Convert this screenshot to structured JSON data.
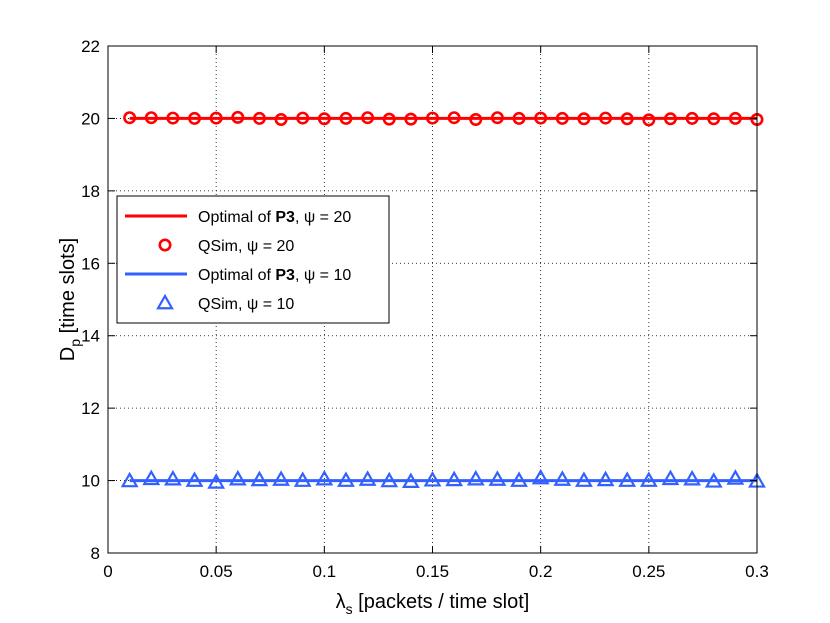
{
  "chart_data": {
    "type": "line",
    "title": "",
    "xlabel": {
      "symbol": "λ",
      "sub": "s",
      "rest": " [packets / time slot]"
    },
    "ylabel": {
      "symbol": "D",
      "sub": "p",
      "rest": " [time slots]"
    },
    "xlim": [
      0,
      0.3
    ],
    "ylim": [
      8,
      22
    ],
    "xticks": [
      0,
      0.05,
      0.1,
      0.15,
      0.2,
      0.25,
      0.3
    ],
    "xtick_labels": [
      "0",
      "0.05",
      "0.1",
      "0.15",
      "0.2",
      "0.25",
      "0.3"
    ],
    "yticks": [
      8,
      10,
      12,
      14,
      16,
      18,
      20,
      22
    ],
    "ytick_labels": [
      "8",
      "10",
      "12",
      "14",
      "16",
      "18",
      "20",
      "22"
    ],
    "grid": true,
    "legend_position": "middle-left",
    "x": [
      0.01,
      0.02,
      0.03,
      0.04,
      0.05,
      0.06,
      0.07,
      0.08,
      0.09,
      0.1,
      0.11,
      0.12,
      0.13,
      0.14,
      0.15,
      0.16,
      0.17,
      0.18,
      0.19,
      0.2,
      0.21,
      0.22,
      0.23,
      0.24,
      0.25,
      0.26,
      0.27,
      0.28,
      0.29,
      0.3
    ],
    "series": [
      {
        "name": "Optimal of P3, ψ = 20",
        "kind": "line",
        "color": "#ff0000",
        "values": [
          20,
          20,
          20,
          20,
          20,
          20,
          20,
          20,
          20,
          20,
          20,
          20,
          20,
          20,
          20,
          20,
          20,
          20,
          20,
          20,
          20,
          20,
          20,
          20,
          20,
          20,
          20,
          20,
          20,
          20
        ]
      },
      {
        "name": "QSim, ψ = 20",
        "kind": "marker-circle",
        "color": "#ff0000",
        "values": [
          20.02,
          20.02,
          20.01,
          20.0,
          20.01,
          20.03,
          20.0,
          19.97,
          20.01,
          19.99,
          20.0,
          20.02,
          19.98,
          19.98,
          20.01,
          20.02,
          19.97,
          20.02,
          20.0,
          20.01,
          20.0,
          19.99,
          20.01,
          19.99,
          19.96,
          19.99,
          20.0,
          19.99,
          20.0,
          19.97
        ]
      },
      {
        "name": "Optimal of P3, ψ = 10",
        "kind": "line",
        "color": "#3361ff",
        "values": [
          10,
          10,
          10,
          10,
          10,
          10,
          10,
          10,
          10,
          10,
          10,
          10,
          10,
          10,
          10,
          10,
          10,
          10,
          10,
          10,
          10,
          10,
          10,
          10,
          10,
          10,
          10,
          10,
          10,
          10
        ]
      },
      {
        "name": "QSim, ψ = 10",
        "kind": "marker-triangle",
        "color": "#3361ff",
        "values": [
          9.99,
          10.05,
          10.04,
          10.0,
          9.95,
          10.04,
          10.02,
          10.03,
          10.0,
          10.04,
          10.0,
          10.03,
          9.99,
          9.97,
          10.01,
          10.02,
          10.04,
          10.03,
          10.0,
          10.07,
          10.03,
          10.0,
          10.02,
          10.0,
          10.0,
          10.05,
          10.04,
          9.98,
          10.06,
          9.98
        ]
      }
    ],
    "legend": [
      {
        "pre": "Optimal of ",
        "bold": "P3",
        "post": ", ψ = 20"
      },
      {
        "pre": "QSim, ψ = 20",
        "bold": "",
        "post": ""
      },
      {
        "pre": "Optimal of ",
        "bold": "P3",
        "post": ", ψ = 10"
      },
      {
        "pre": "QSim, ψ = 10",
        "bold": "",
        "post": ""
      }
    ]
  }
}
